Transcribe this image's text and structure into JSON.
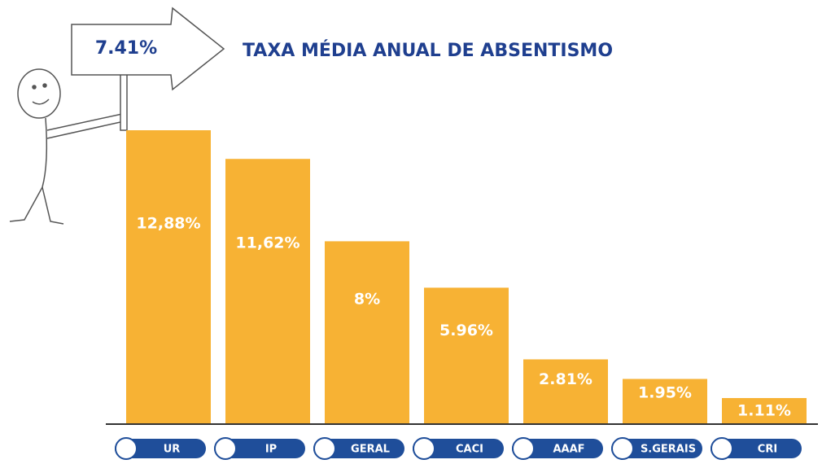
{
  "chart_data": {
    "type": "bar",
    "title": "TAXA MÉDIA ANUAL DE ABSENTISMO",
    "annotation": "7.41%",
    "categories": [
      "UR",
      "IP",
      "GERAL",
      "CACI",
      "AAAF",
      "S.GERAIS",
      "CRI"
    ],
    "values": [
      12.88,
      11.62,
      8,
      5.96,
      2.81,
      1.95,
      1.11
    ],
    "value_labels": [
      "12,88%",
      "11,62%",
      "8%",
      "5.96%",
      "2.81%",
      "1.95%",
      "1.11%"
    ],
    "color": "#f7b234"
  }
}
